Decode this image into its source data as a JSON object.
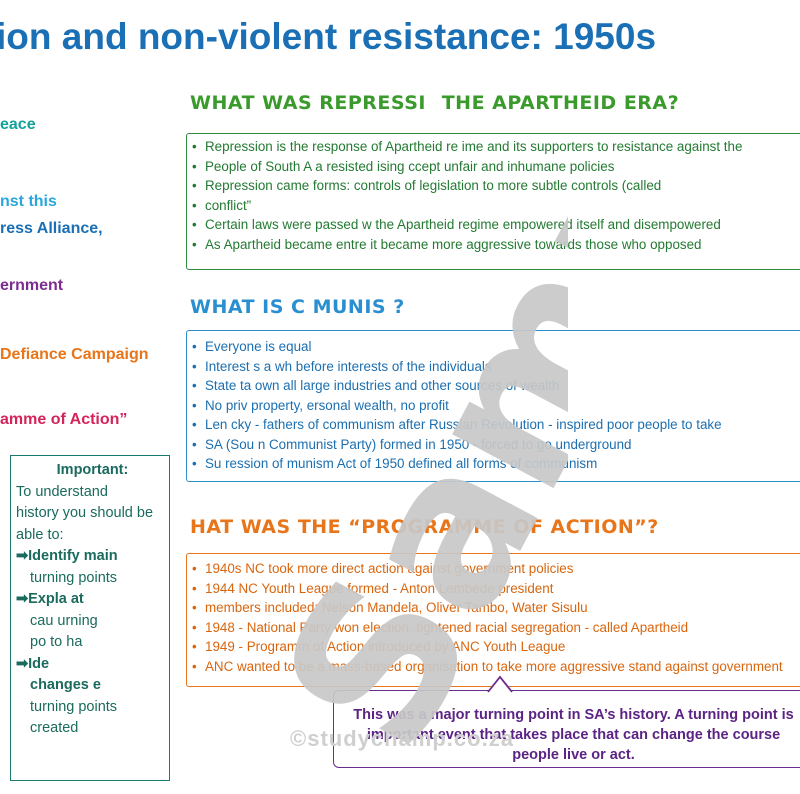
{
  "title": "ion and non-violent resistance: 1950s",
  "left_column": [
    {
      "text": "eace",
      "color": "#16a29c"
    },
    {
      "text": "nst this",
      "color": "#2aa6dc"
    },
    {
      "text": "ress Alliance,",
      "color": "#1a6fb5"
    },
    {
      "text": "ernment",
      "color": "#7b2d8f"
    },
    {
      "text": " Defiance Campaign",
      "color": "#e8751a"
    },
    {
      "text": "amme of Action”",
      "color": "#d4245a"
    }
  ],
  "repression": {
    "heading": "What was repressi        the Apartheid era?",
    "items": [
      "Repression is the response of        Apartheid re   ime and its supporters to resistance against the",
      "People of South A     a resisted         ising      ccept unfair and inhumane policies",
      "Repression came              forms:              controls of legislation to more subtle controls (called",
      "conflict”",
      "Certain laws were passed w              the Apartheid regime empowered itself and disempowered",
      "As Apartheid became          entre          it became more aggressive towards those who opposed"
    ]
  },
  "communism": {
    "heading": "What is c           munis    ?",
    "items": [
      "Everyone is equal",
      "Interest        s a wh          before interests of the individuals",
      "State ta       own         all large industries and other sources of wealth",
      "No priv      property,        ersonal wealth, no profit",
      "Len          cky - fathers of communism after Russian Revolution - inspired poor people to take",
      "SA        (Sou       n Communist Party) formed in 1950 - forced to go underground",
      "Su       ression of         munism Act of 1950 defined all forms of communism"
    ]
  },
  "programme": {
    "heading": "  hat was the “Programme of Action”?",
    "items": [
      "1940s     NC took more direct action against government policies",
      "1944      NC Youth League formed - Anton Lembede president",
      "          members included: Nelson Mandela, Oliver Tambo, Water Sisulu",
      "1948 - National Party won election, tightened racial segregation - called Apartheid",
      "1949 - Programm of Action introduced by ANC Youth League",
      "ANC wanted to be a mass-based organisation to take more aggressive stand against government"
    ]
  },
  "important": {
    "heading": "Important:",
    "lines": [
      "To understand",
      "history you should be",
      "able to:"
    ],
    "steps": [
      {
        "label": "Identify main",
        "rest": [
          "turning points"
        ]
      },
      {
        "label": "Expla      at",
        "rest": [
          "cau      urning",
          "po        to ha"
        ]
      },
      {
        "label": "Ide",
        "rest": [
          "changes       e",
          "turning points",
          "created"
        ]
      }
    ]
  },
  "callout": {
    "lines": [
      "This was a major turning point in SA’s history. A turning point is",
      "important event that takes place that can change the course",
      "people live or act."
    ]
  },
  "watermark": {
    "text": "Sample",
    "copyright": "©studychamp.co.za"
  },
  "colors": {
    "title": "#1a6fb5",
    "repression": "#2e8b3d",
    "communism": "#2f8fcd",
    "programme": "#e8751a",
    "important": "#1a7a6e",
    "callout": "#6a2c8f",
    "watermark": "#c8c8c8"
  }
}
